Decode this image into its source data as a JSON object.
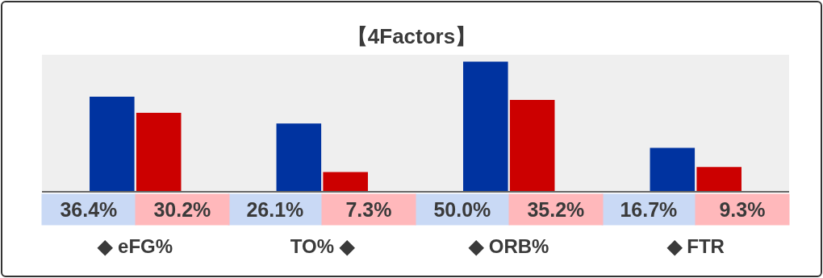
{
  "chart_data": {
    "type": "bar",
    "title": "【4Factors】",
    "categories": [
      "◆ eFG%",
      "TO% ◆",
      "◆ ORB%",
      "◆ FTR"
    ],
    "series": [
      {
        "color": "#0033a0",
        "values": [
          36.4,
          26.1,
          50.0,
          16.7
        ],
        "value_labels": [
          "36.4%",
          "26.1%",
          "50.0%",
          "16.7%"
        ]
      },
      {
        "color": "#cc0000",
        "values": [
          30.2,
          7.3,
          35.2,
          9.3
        ],
        "value_labels": [
          "30.2%",
          "7.3%",
          "35.2%",
          "9.3%"
        ]
      }
    ]
  }
}
